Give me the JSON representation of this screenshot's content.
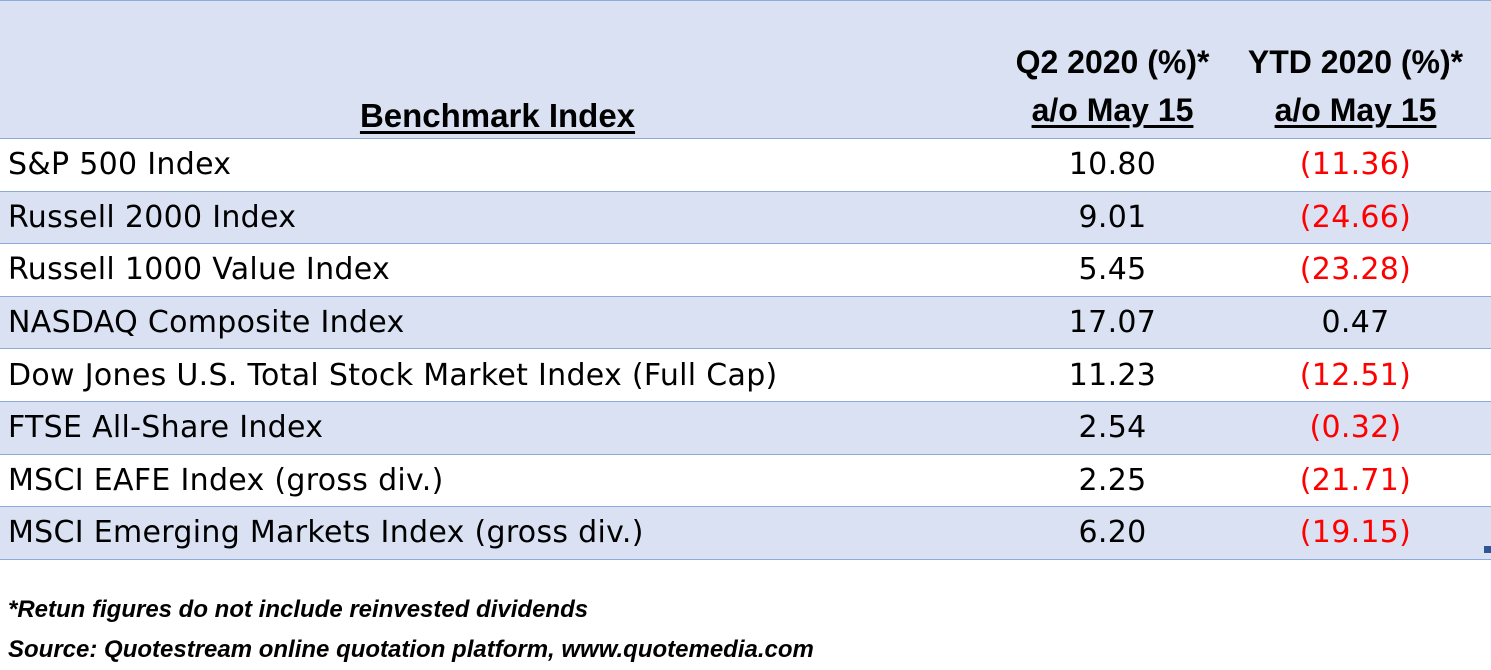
{
  "table": {
    "headers": {
      "name": "Benchmark Index",
      "q2_line1": "Q2 2020 (%)*",
      "q2_line2": "a/o May 15",
      "ytd_line1": "YTD 2020 (%)*",
      "ytd_line2": "a/o May 15"
    },
    "rows": [
      {
        "name": "S&P 500 Index",
        "q2": "10.80",
        "ytd": "(11.36)",
        "ytd_negative": true
      },
      {
        "name": "Russell 2000 Index",
        "q2": "9.01",
        "ytd": "(24.66)",
        "ytd_negative": true
      },
      {
        "name": "Russell 1000 Value Index",
        "q2": "5.45",
        "ytd": "(23.28)",
        "ytd_negative": true
      },
      {
        "name": "NASDAQ Composite Index",
        "q2": "17.07",
        "ytd": "0.47",
        "ytd_negative": false
      },
      {
        "name": "Dow Jones U.S. Total Stock Market Index (Full Cap)",
        "q2": "11.23",
        "ytd": "(12.51)",
        "ytd_negative": true
      },
      {
        "name": "FTSE All-Share Index",
        "q2": "2.54",
        "ytd": "(0.32)",
        "ytd_negative": true
      },
      {
        "name": "MSCI EAFE Index (gross div.)",
        "q2": "2.25",
        "ytd": "(21.71)",
        "ytd_negative": true
      },
      {
        "name": "MSCI Emerging Markets Index (gross div.)",
        "q2": "6.20",
        "ytd": "(19.15)",
        "ytd_negative": true
      }
    ]
  },
  "footnotes": {
    "note": "*Retun figures do not include reinvested dividends",
    "source": "Source:  Quotestream online quotation platform, www.quotemedia.com"
  },
  "colors": {
    "header_fill": "#d9e1f2",
    "shaded_row": "#d9e1f2",
    "border": "#8eaadb",
    "negative_text": "#ff0000"
  }
}
